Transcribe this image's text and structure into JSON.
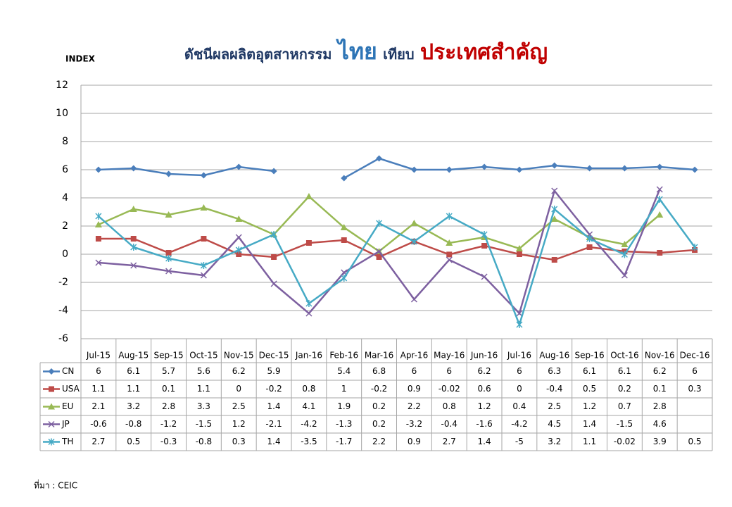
{
  "chart_data": {
    "type": "line",
    "title": [
      "ดัชนีผลผลิตอุตสาหกรรม",
      "ไทย",
      "เทียบ",
      "ประเทศสำคัญ"
    ],
    "y_label": "INDEX",
    "source": "ที่มา : CEIC",
    "categories": [
      "Jul-15",
      "Aug-15",
      "Sep-15",
      "Oct-15",
      "Nov-15",
      "Dec-15",
      "Jan-16",
      "Feb-16",
      "Mar-16",
      "Apr-16",
      "May-16",
      "Jun-16",
      "Jul-16",
      "Aug-16",
      "Sep-16",
      "Oct-16",
      "Nov-16",
      "Dec-16"
    ],
    "series": [
      {
        "name": "CN",
        "color": "#4a7ebb",
        "marker": "diamond",
        "values": [
          6,
          6.1,
          5.7,
          5.6,
          6.2,
          5.9,
          null,
          5.4,
          6.8,
          6,
          6,
          6.2,
          6,
          6.3,
          6.1,
          6.1,
          6.2,
          6
        ]
      },
      {
        "name": "USA",
        "color": "#be4b48",
        "marker": "square",
        "values": [
          1.1,
          1.1,
          0.1,
          1.1,
          0,
          -0.2,
          0.8,
          1,
          -0.2,
          0.9,
          -0.02,
          0.6,
          0,
          -0.4,
          0.5,
          0.2,
          0.1,
          0.3
        ]
      },
      {
        "name": "EU",
        "color": "#98b954",
        "marker": "triangle",
        "values": [
          2.1,
          3.2,
          2.8,
          3.3,
          2.5,
          1.4,
          4.1,
          1.9,
          0.2,
          2.2,
          0.8,
          1.2,
          0.4,
          2.5,
          1.2,
          0.7,
          2.8,
          null
        ]
      },
      {
        "name": "JP",
        "color": "#7d60a0",
        "marker": "x",
        "values": [
          -0.6,
          -0.8,
          -1.2,
          -1.5,
          1.2,
          -2.1,
          -4.2,
          -1.3,
          0.2,
          -3.2,
          -0.4,
          -1.6,
          -4.2,
          4.5,
          1.4,
          -1.5,
          4.6,
          null
        ]
      },
      {
        "name": "TH",
        "color": "#46aac5",
        "marker": "star",
        "values": [
          2.7,
          0.5,
          -0.3,
          -0.8,
          0.3,
          1.4,
          -3.5,
          -1.7,
          2.2,
          0.9,
          2.7,
          1.4,
          -5,
          3.2,
          1.1,
          -0.02,
          3.9,
          0.5
        ]
      }
    ],
    "ylim": [
      -6,
      12
    ],
    "yticks": [
      -6,
      -4,
      -2,
      0,
      2,
      4,
      6,
      8,
      10,
      12
    ],
    "grid": true
  }
}
